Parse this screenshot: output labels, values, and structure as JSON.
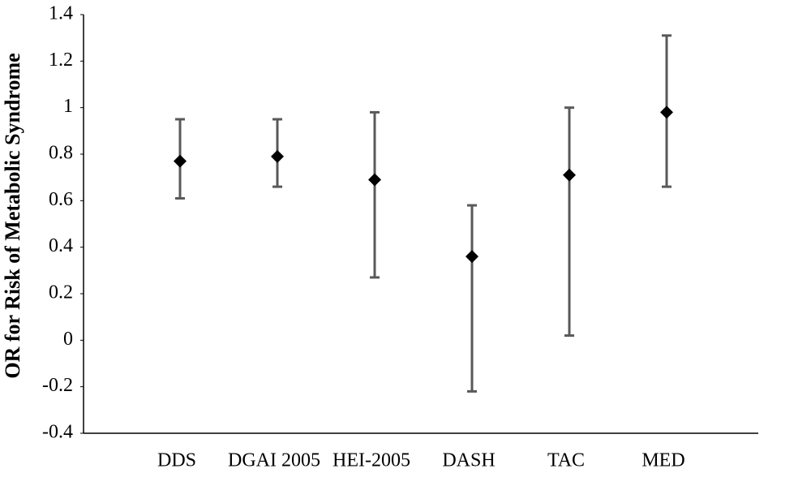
{
  "chart_data": {
    "type": "errorbar",
    "y_label": "OR for Risk of Metabolic Syndrome",
    "categories": [
      "DDS",
      "DGAI 2005",
      "HEI-2005",
      "DASH",
      "TAC",
      "MED"
    ],
    "values": [
      0.77,
      0.79,
      0.69,
      0.36,
      0.71,
      0.98
    ],
    "ci_low": [
      0.61,
      0.66,
      0.27,
      -0.22,
      0.02,
      0.66
    ],
    "ci_high": [
      0.95,
      0.95,
      0.98,
      0.58,
      1.0,
      1.31
    ],
    "color": "#000000",
    "error_color": "#595959",
    "ylim": [
      -0.4,
      1.4
    ],
    "yticks": [
      -0.4,
      -0.2,
      0,
      0.2,
      0.4,
      0.6,
      0.8,
      1,
      1.2,
      1.4
    ],
    "grid": false
  }
}
